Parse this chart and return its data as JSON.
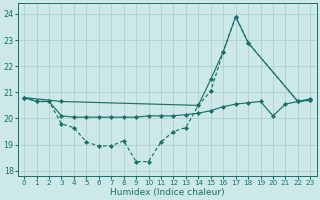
{
  "xlabel": "Humidex (Indice chaleur)",
  "bg_color": "#cce8e8",
  "grid_color": "#aacccc",
  "line_color": "#1a7068",
  "xlim": [
    -0.5,
    23.5
  ],
  "ylim": [
    17.8,
    24.4
  ],
  "yticks": [
    18,
    19,
    20,
    21,
    22,
    23,
    24
  ],
  "xticks": [
    0,
    1,
    2,
    3,
    4,
    5,
    6,
    7,
    8,
    9,
    10,
    11,
    12,
    13,
    14,
    15,
    16,
    17,
    18,
    19,
    20,
    21,
    22,
    23
  ],
  "line_diagonal_x": [
    0,
    3,
    14,
    15,
    16,
    17,
    18,
    22,
    23
  ],
  "line_diagonal_y": [
    20.8,
    20.65,
    20.5,
    21.5,
    22.55,
    23.9,
    22.9,
    20.65,
    20.7
  ],
  "line_zigzag_x": [
    0,
    1,
    2,
    3,
    4,
    5,
    6,
    7,
    8,
    9,
    10,
    11,
    12,
    13,
    14,
    15,
    16,
    17,
    18,
    22,
    23
  ],
  "line_zigzag_y": [
    20.8,
    20.65,
    20.65,
    19.8,
    19.65,
    19.1,
    18.95,
    18.95,
    19.15,
    18.35,
    18.35,
    19.1,
    19.5,
    19.65,
    20.5,
    21.05,
    22.55,
    23.9,
    22.9,
    20.65,
    20.7
  ],
  "line_flat_x": [
    0,
    1,
    2,
    3,
    4,
    5,
    6,
    7,
    8,
    9,
    10,
    11,
    12,
    13,
    14,
    15,
    16,
    17,
    18,
    19,
    20,
    21,
    22,
    23
  ],
  "line_flat_y": [
    20.8,
    20.65,
    20.65,
    20.1,
    20.05,
    20.05,
    20.05,
    20.05,
    20.05,
    20.05,
    20.1,
    20.1,
    20.1,
    20.15,
    20.2,
    20.3,
    20.45,
    20.55,
    20.6,
    20.65,
    20.1,
    20.55,
    20.65,
    20.75
  ]
}
